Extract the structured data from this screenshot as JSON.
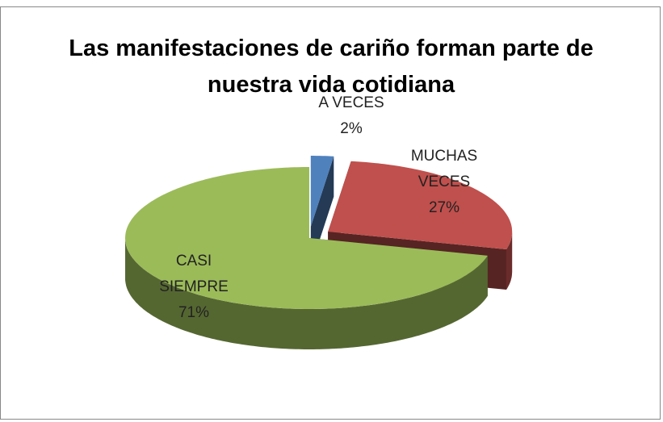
{
  "chart_data": {
    "type": "pie",
    "title": "Las manifestaciones de cariño forman parte de nuestra vida cotidiana",
    "categories": [
      "A VECES",
      "MUCHAS VECES",
      "CASI SIEMPRE"
    ],
    "values": [
      2,
      27,
      71
    ],
    "value_labels": [
      "2%",
      "27%",
      "71%"
    ],
    "colors": [
      "#4f81bd",
      "#c0504d",
      "#9bbb59"
    ]
  }
}
